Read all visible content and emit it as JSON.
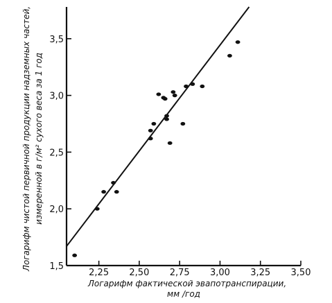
{
  "chart_data": {
    "type": "scatter",
    "xlabel_lines": [
      "Логарифм фактической эвапотранспирации,",
      "мм /год"
    ],
    "ylabel_lines": [
      "Логарифм чистой первичной продукции надземных частей,",
      "измеренной в г/м² сухого веса за 1 год"
    ],
    "xlim": [
      2.05,
      3.5
    ],
    "ylim": [
      1.5,
      3.78
    ],
    "x_ticks": [
      2.25,
      2.5,
      2.75,
      3.0,
      3.25,
      3.5
    ],
    "x_tick_labels": [
      "2,25",
      "2,50",
      "2,75",
      "3,00",
      "3,25",
      "3,50"
    ],
    "y_ticks": [
      1.5,
      2.0,
      2.5,
      3.0,
      3.5
    ],
    "y_tick_labels": [
      "1,5",
      "2,0",
      "2,5",
      "3,0",
      "3,5"
    ],
    "grid": false,
    "points": [
      {
        "x": 2.1,
        "y": 1.59
      },
      {
        "x": 2.24,
        "y": 2.0
      },
      {
        "x": 2.28,
        "y": 2.15
      },
      {
        "x": 2.34,
        "y": 2.23
      },
      {
        "x": 2.36,
        "y": 2.15
      },
      {
        "x": 2.57,
        "y": 2.62
      },
      {
        "x": 2.57,
        "y": 2.69
      },
      {
        "x": 2.59,
        "y": 2.75
      },
      {
        "x": 2.62,
        "y": 3.01
      },
      {
        "x": 2.65,
        "y": 2.98
      },
      {
        "x": 2.66,
        "y": 2.97
      },
      {
        "x": 2.67,
        "y": 2.79
      },
      {
        "x": 2.67,
        "y": 2.82
      },
      {
        "x": 2.69,
        "y": 2.58
      },
      {
        "x": 2.71,
        "y": 3.03
      },
      {
        "x": 2.72,
        "y": 3.0
      },
      {
        "x": 2.77,
        "y": 2.75
      },
      {
        "x": 2.79,
        "y": 3.08
      },
      {
        "x": 2.83,
        "y": 3.1
      },
      {
        "x": 2.89,
        "y": 3.08
      },
      {
        "x": 3.06,
        "y": 3.35
      },
      {
        "x": 3.11,
        "y": 3.47
      }
    ],
    "regression_line": {
      "x": [
        2.05,
        3.18
      ],
      "y": [
        1.67,
        3.78
      ]
    }
  }
}
